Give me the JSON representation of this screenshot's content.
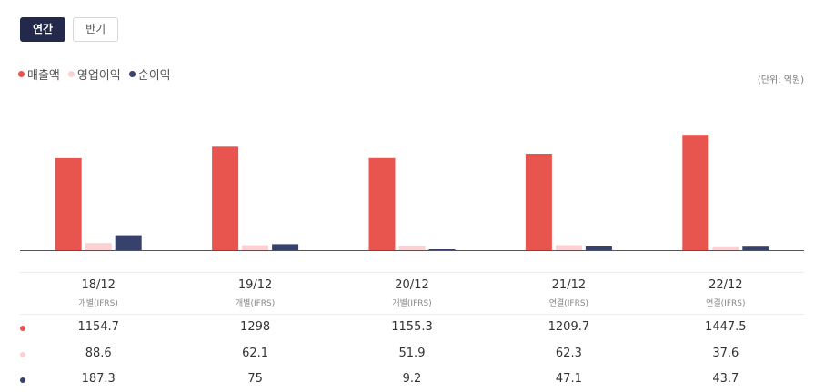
{
  "tabs": [
    {
      "label": "연간",
      "active": true
    },
    {
      "label": "반기",
      "active": false
    }
  ],
  "unit_label": "(단위: 억원)",
  "colors": {
    "revenue": "#e8554f",
    "operating": "#fbd1d3",
    "net": "#36426b",
    "baseline": "#555555"
  },
  "chart_data": {
    "type": "bar",
    "categories": [
      "18/12",
      "19/12",
      "20/12",
      "21/12",
      "22/12"
    ],
    "basis": [
      "개별(IFRS)",
      "개별(IFRS)",
      "개별(IFRS)",
      "연결(IFRS)",
      "연결(IFRS)"
    ],
    "series": [
      {
        "name": "매출액",
        "color": "#e8554f",
        "values": [
          1154.7,
          1298,
          1155.3,
          1209.7,
          1447.5
        ]
      },
      {
        "name": "영업이익",
        "color": "#fbd1d3",
        "values": [
          88.6,
          62.1,
          51.9,
          62.3,
          37.6
        ]
      },
      {
        "name": "순이익",
        "color": "#36426b",
        "values": [
          187.3,
          75,
          9.2,
          47.1,
          43.7
        ]
      }
    ],
    "ylim": [
      0,
      1450
    ],
    "grid": false,
    "legend": "top-left"
  }
}
